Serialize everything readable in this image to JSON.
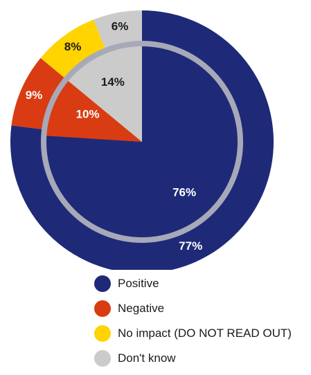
{
  "colors": {
    "positive": "#1e2a78",
    "negative": "#d93c12",
    "no_impact": "#ffd400",
    "dont_know": "#cbcbcb",
    "inner_ring": "#a8a9b8",
    "label_light": "#ffffff",
    "label_dark": "#1b1b1b"
  },
  "chart_data": {
    "type": "pie",
    "title": "",
    "categories": [
      "Positive",
      "Negative",
      "No impact (DO NOT READ OUT)",
      "Don't know"
    ],
    "series": [
      {
        "ring": "outer",
        "values": [
          77,
          9,
          8,
          6
        ],
        "labels": [
          "77%",
          "9%",
          "8%",
          "6%"
        ]
      },
      {
        "ring": "inner",
        "values": [
          76,
          10,
          0,
          14
        ],
        "labels": [
          "76%",
          "10%",
          "",
          "14%"
        ]
      }
    ],
    "legend_position": "bottom"
  },
  "legend": [
    {
      "label": "Positive",
      "color": "#1e2a78"
    },
    {
      "label": "Negative",
      "color": "#d93c12"
    },
    {
      "label": "No impact (DO NOT READ OUT)",
      "color": "#ffd400"
    },
    {
      "label": "Don't know",
      "color": "#cbcbcb"
    }
  ]
}
